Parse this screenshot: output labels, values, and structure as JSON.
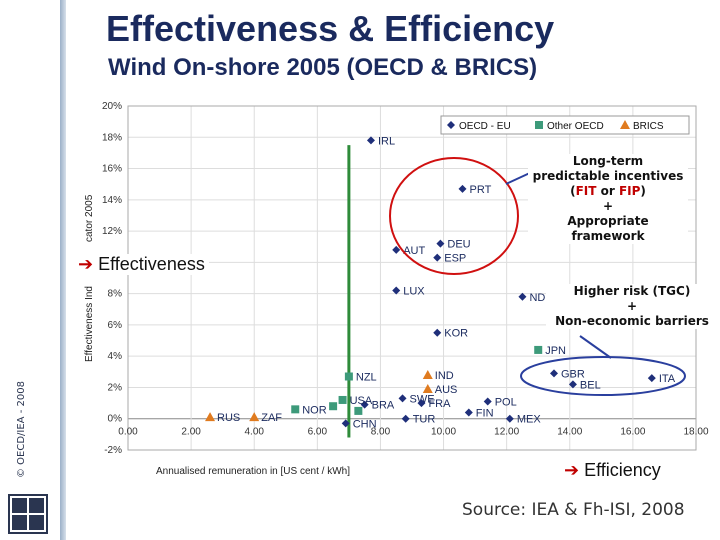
{
  "header": {
    "title": "Effectiveness & Efficiency",
    "subtitle": "Wind On-shore 2005 (OECD & BRICS)"
  },
  "sidebar": {
    "copyright": "© OECD/IEA - 2008"
  },
  "annotations": {
    "long_term": {
      "line1": "Long-term",
      "line2": "predictable incentives",
      "line3_open": "(",
      "fit": "FIT",
      "or": " or ",
      "fip": "FIP",
      "line3_close": ")",
      "plus": "+",
      "line4": "Appropriate",
      "line5": "framework"
    },
    "higher_risk": {
      "line1": "Higher risk (TGC)",
      "plus": "+",
      "line2": "Non-economic barriers"
    },
    "effectiveness_label": "Effectiveness",
    "efficiency_label": "Efficiency",
    "arrow": "➔"
  },
  "source": "Source: IEA & Fh-ISI, 2008",
  "colors": {
    "oecd_eu": "#1f2f7a",
    "other_oecd": "#3d9a7a",
    "brics": "#e07b1f",
    "threshold_line": "#2e8b3a",
    "highlight_circle": "#d01010",
    "callout_line": "#2a3f9e",
    "grid": "#dddddd"
  },
  "chart_data": {
    "type": "scatter",
    "xlabel": "Annualised remuneration in [US cent / kWh]",
    "ylabel": "Effectiveness Ind",
    "ylabel_secondary": "cator 2005",
    "xlim": [
      0,
      18
    ],
    "ylim": [
      -2,
      20
    ],
    "xticks": [
      "0.00",
      "2.00",
      "4.00",
      "6.00",
      "8.00",
      "10.00",
      "12.00",
      "14.00",
      "16.00",
      "18.00"
    ],
    "yticks": [
      "-2%",
      "0%",
      "2%",
      "4%",
      "6%",
      "8%",
      "10%",
      "12%",
      "14%",
      "16%",
      "18%",
      "20%"
    ],
    "threshold_x": 7.0,
    "legend": [
      {
        "key": "oecd_eu",
        "label": "OECD - EU",
        "marker": "diamond"
      },
      {
        "key": "other_oecd",
        "label": "Other OECD",
        "marker": "square"
      },
      {
        "key": "brics",
        "label": "BRICS",
        "marker": "triangle"
      }
    ],
    "series": [
      {
        "key": "oecd_eu",
        "name": "OECD - EU",
        "points": [
          {
            "label": "IRL",
            "x": 7.7,
            "y": 17.8
          },
          {
            "label": "PRT",
            "x": 10.6,
            "y": 14.7
          },
          {
            "label": "DEU",
            "x": 9.9,
            "y": 11.2
          },
          {
            "label": "AUT",
            "x": 8.5,
            "y": 10.8
          },
          {
            "label": "ESP",
            "x": 9.8,
            "y": 10.3
          },
          {
            "label": "LUX",
            "x": 8.5,
            "y": 8.2
          },
          {
            "label": "ND",
            "x": 12.5,
            "y": 7.8
          },
          {
            "label": "KOR",
            "x": 9.8,
            "y": 5.5
          },
          {
            "label": "GBR",
            "x": 13.5,
            "y": 2.9
          },
          {
            "label": "BEL",
            "x": 14.1,
            "y": 2.2
          },
          {
            "label": "ITA",
            "x": 16.6,
            "y": 2.6
          },
          {
            "label": "SWE",
            "x": 8.7,
            "y": 1.3
          },
          {
            "label": "FRA",
            "x": 9.3,
            "y": 1.0
          },
          {
            "label": "BRA",
            "x": 7.5,
            "y": 0.9
          },
          {
            "label": "POL",
            "x": 11.4,
            "y": 1.1
          },
          {
            "label": "FIN",
            "x": 10.8,
            "y": 0.4
          },
          {
            "label": "MEX",
            "x": 12.1,
            "y": 0.0
          },
          {
            "label": "CHN",
            "x": 6.9,
            "y": -0.3
          },
          {
            "label": "TUR",
            "x": 8.8,
            "y": 0.0
          }
        ]
      },
      {
        "key": "other_oecd",
        "name": "Other OECD",
        "points": [
          {
            "label": "NZL",
            "x": 7.0,
            "y": 2.7
          },
          {
            "label": "USA",
            "x": 6.8,
            "y": 1.2
          },
          {
            "label": "NOR",
            "x": 5.3,
            "y": 0.6
          },
          {
            "label": "JPN",
            "x": 13.0,
            "y": 4.4
          },
          {
            "label": "",
            "x": 7.3,
            "y": 0.5
          },
          {
            "label": "",
            "x": 6.5,
            "y": 0.8
          }
        ]
      },
      {
        "key": "brics",
        "name": "BRICS",
        "points": [
          {
            "label": "IND",
            "x": 9.5,
            "y": 2.8
          },
          {
            "label": "AUS",
            "x": 9.5,
            "y": 1.9
          },
          {
            "label": "RUS",
            "x": 2.6,
            "y": 0.1
          },
          {
            "label": "ZAF",
            "x": 4.0,
            "y": 0.1
          }
        ]
      }
    ]
  }
}
